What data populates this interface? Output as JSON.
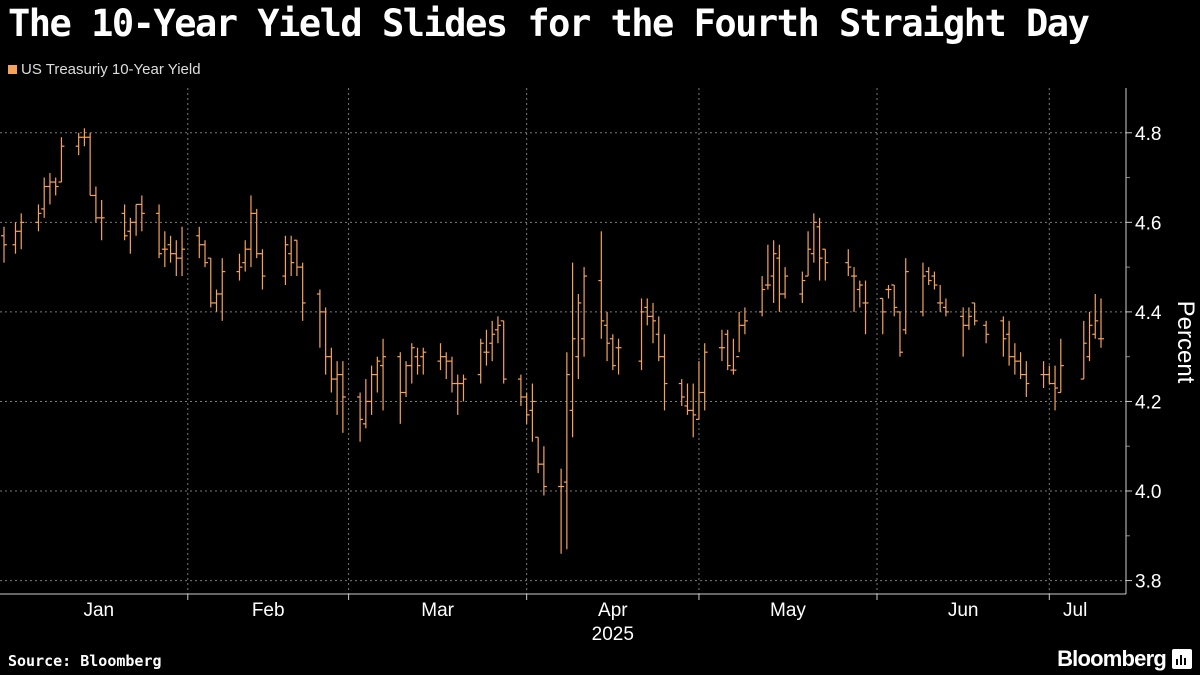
{
  "title": "The 10-Year Yield Slides for the Fourth Straight Day",
  "source": "Source: Bloomberg",
  "brand": "Bloomberg",
  "colors": {
    "background": "#000000",
    "series": "#f5a35a",
    "grid": "#7a7a7a",
    "text": "#ffffff"
  },
  "chart_data": {
    "type": "ohlc",
    "series_name": "US Treasuriy 10-Year Yield",
    "ylabel": "Percent",
    "xlabel": "2025",
    "ylim": [
      3.77,
      4.9
    ],
    "yticks": [
      3.8,
      4.0,
      4.2,
      4.4,
      4.6,
      4.8
    ],
    "x_start": "2024-12-31",
    "x_end": "2025-07-10",
    "grid": true,
    "legend_position": "top-left",
    "month_ticks": [
      "Jan",
      "Feb",
      "Mar",
      "Apr",
      "May",
      "Jun",
      "Jul"
    ],
    "month_ticks_dates": [
      "2025-01-01",
      "2025-02-01",
      "2025-03-01",
      "2025-04-01",
      "2025-05-01",
      "2025-06-01",
      "2025-07-01"
    ],
    "dates": [
      "2024-12-31",
      "2025-01-02",
      "2025-01-03",
      "2025-01-06",
      "2025-01-07",
      "2025-01-08",
      "2025-01-09",
      "2025-01-10",
      "2025-01-13",
      "2025-01-14",
      "2025-01-15",
      "2025-01-16",
      "2025-01-17",
      "2025-01-21",
      "2025-01-22",
      "2025-01-23",
      "2025-01-24",
      "2025-01-27",
      "2025-01-28",
      "2025-01-29",
      "2025-01-30",
      "2025-01-31",
      "2025-02-03",
      "2025-02-04",
      "2025-02-05",
      "2025-02-06",
      "2025-02-07",
      "2025-02-10",
      "2025-02-11",
      "2025-02-12",
      "2025-02-13",
      "2025-02-14",
      "2025-02-18",
      "2025-02-19",
      "2025-02-20",
      "2025-02-21",
      "2025-02-24",
      "2025-02-25",
      "2025-02-26",
      "2025-02-27",
      "2025-02-28",
      "2025-03-03",
      "2025-03-04",
      "2025-03-05",
      "2025-03-06",
      "2025-03-07",
      "2025-03-10",
      "2025-03-11",
      "2025-03-12",
      "2025-03-13",
      "2025-03-14",
      "2025-03-17",
      "2025-03-18",
      "2025-03-19",
      "2025-03-20",
      "2025-03-21",
      "2025-03-24",
      "2025-03-25",
      "2025-03-26",
      "2025-03-27",
      "2025-03-28",
      "2025-03-31",
      "2025-04-01",
      "2025-04-02",
      "2025-04-03",
      "2025-04-04",
      "2025-04-07",
      "2025-04-08",
      "2025-04-09",
      "2025-04-10",
      "2025-04-11",
      "2025-04-14",
      "2025-04-15",
      "2025-04-16",
      "2025-04-17",
      "2025-04-21",
      "2025-04-22",
      "2025-04-23",
      "2025-04-24",
      "2025-04-25",
      "2025-04-28",
      "2025-04-29",
      "2025-04-30",
      "2025-05-01",
      "2025-05-02",
      "2025-05-05",
      "2025-05-06",
      "2025-05-07",
      "2025-05-08",
      "2025-05-09",
      "2025-05-12",
      "2025-05-13",
      "2025-05-14",
      "2025-05-15",
      "2025-05-16",
      "2025-05-19",
      "2025-05-20",
      "2025-05-21",
      "2025-05-22",
      "2025-05-23",
      "2025-05-27",
      "2025-05-28",
      "2025-05-29",
      "2025-05-30",
      "2025-06-02",
      "2025-06-03",
      "2025-06-04",
      "2025-06-05",
      "2025-06-06",
      "2025-06-09",
      "2025-06-10",
      "2025-06-11",
      "2025-06-12",
      "2025-06-13",
      "2025-06-16",
      "2025-06-17",
      "2025-06-18",
      "2025-06-20",
      "2025-06-23",
      "2025-06-24",
      "2025-06-25",
      "2025-06-26",
      "2025-06-27",
      "2025-06-30",
      "2025-07-01",
      "2025-07-02",
      "2025-07-03",
      "2025-07-07",
      "2025-07-08",
      "2025-07-09",
      "2025-07-10"
    ],
    "open": [
      4.57,
      4.55,
      4.58,
      4.6,
      4.63,
      4.68,
      4.69,
      4.69,
      4.77,
      4.79,
      4.79,
      4.66,
      4.61,
      4.62,
      4.58,
      4.6,
      4.64,
      4.62,
      4.54,
      4.55,
      4.53,
      4.52,
      4.57,
      4.55,
      4.52,
      4.42,
      4.44,
      4.49,
      4.51,
      4.54,
      4.62,
      4.53,
      4.48,
      4.53,
      4.56,
      4.5,
      4.44,
      4.4,
      4.3,
      4.25,
      4.26,
      4.21,
      4.15,
      4.2,
      4.26,
      4.28,
      4.3,
      4.22,
      4.28,
      4.3,
      4.3,
      4.29,
      4.3,
      4.29,
      4.24,
      4.24,
      4.26,
      4.31,
      4.33,
      4.36,
      4.38,
      4.25,
      4.21,
      4.18,
      4.12,
      4.06,
      4.01,
      4.02,
      4.18,
      4.3,
      4.34,
      4.47,
      4.37,
      4.34,
      4.32,
      4.29,
      4.41,
      4.39,
      4.35,
      4.3,
      4.24,
      4.19,
      4.18,
      4.16,
      4.22,
      4.32,
      4.35,
      4.27,
      4.3,
      4.37,
      4.4,
      4.46,
      4.48,
      4.52,
      4.44,
      4.44,
      4.48,
      4.53,
      4.59,
      4.54,
      4.51,
      4.48,
      4.45,
      4.42,
      4.43,
      4.45,
      4.46,
      4.4,
      4.36,
      4.4,
      4.49,
      4.48,
      4.42,
      4.41,
      4.39,
      4.37,
      4.42,
      4.37,
      4.38,
      4.35,
      4.3,
      4.29,
      4.26,
      4.26,
      4.26,
      4.24,
      4.22,
      4.25,
      4.3,
      4.35,
      4.34
    ],
    "high": [
      4.59,
      4.6,
      4.62,
      4.64,
      4.7,
      4.71,
      4.7,
      4.79,
      4.8,
      4.81,
      4.8,
      4.68,
      4.65,
      4.64,
      4.61,
      4.64,
      4.66,
      4.64,
      4.58,
      4.57,
      4.56,
      4.59,
      4.59,
      4.56,
      4.52,
      4.45,
      4.52,
      4.53,
      4.56,
      4.66,
      4.63,
      4.54,
      4.57,
      4.57,
      4.56,
      4.51,
      4.45,
      4.41,
      4.32,
      4.29,
      4.29,
      4.22,
      4.25,
      4.28,
      4.3,
      4.34,
      4.31,
      4.29,
      4.33,
      4.32,
      4.32,
      4.33,
      4.31,
      4.3,
      4.26,
      4.26,
      4.34,
      4.36,
      4.38,
      4.39,
      4.38,
      4.26,
      4.22,
      4.24,
      4.12,
      4.1,
      4.05,
      4.31,
      4.51,
      4.44,
      4.5,
      4.58,
      4.4,
      4.35,
      4.34,
      4.43,
      4.43,
      4.42,
      4.39,
      4.35,
      4.25,
      4.24,
      4.24,
      4.29,
      4.33,
      4.36,
      4.36,
      4.34,
      4.4,
      4.41,
      4.48,
      4.55,
      4.56,
      4.55,
      4.5,
      4.49,
      4.58,
      4.62,
      4.61,
      4.54,
      4.54,
      4.5,
      4.47,
      4.47,
      4.43,
      4.46,
      4.46,
      4.4,
      4.52,
      4.51,
      4.5,
      4.49,
      4.46,
      4.43,
      4.41,
      4.41,
      4.42,
      4.38,
      4.39,
      4.38,
      4.33,
      4.31,
      4.29,
      4.29,
      4.28,
      4.28,
      4.34,
      4.38,
      4.4,
      4.44,
      4.43
    ],
    "low": [
      4.51,
      4.53,
      4.54,
      4.58,
      4.61,
      4.64,
      4.66,
      4.69,
      4.75,
      4.77,
      4.66,
      4.6,
      4.56,
      4.56,
      4.53,
      4.57,
      4.58,
      4.52,
      4.5,
      4.51,
      4.48,
      4.48,
      4.52,
      4.5,
      4.41,
      4.4,
      4.38,
      4.47,
      4.49,
      4.5,
      4.52,
      4.45,
      4.46,
      4.48,
      4.48,
      4.38,
      4.32,
      4.26,
      4.22,
      4.17,
      4.13,
      4.11,
      4.14,
      4.17,
      4.22,
      4.18,
      4.15,
      4.21,
      4.24,
      4.26,
      4.26,
      4.27,
      4.25,
      4.22,
      4.17,
      4.2,
      4.24,
      4.28,
      4.29,
      4.33,
      4.24,
      4.19,
      4.15,
      4.11,
      4.04,
      3.99,
      3.86,
      3.87,
      4.12,
      4.25,
      4.3,
      4.34,
      4.29,
      4.27,
      4.26,
      4.27,
      4.37,
      4.33,
      4.29,
      4.18,
      4.19,
      4.17,
      4.12,
      4.16,
      4.18,
      4.29,
      4.27,
      4.26,
      4.31,
      4.35,
      4.39,
      4.45,
      4.42,
      4.4,
      4.43,
      4.42,
      4.48,
      4.51,
      4.47,
      4.47,
      4.48,
      4.4,
      4.41,
      4.35,
      4.35,
      4.43,
      4.39,
      4.3,
      4.35,
      4.39,
      4.46,
      4.45,
      4.4,
      4.39,
      4.3,
      4.36,
      4.37,
      4.33,
      4.3,
      4.28,
      4.26,
      4.25,
      4.21,
      4.23,
      4.24,
      4.18,
      4.22,
      4.25,
      4.29,
      4.34,
      4.32
    ],
    "close": [
      4.55,
      4.58,
      4.6,
      4.62,
      4.68,
      4.69,
      4.68,
      4.77,
      4.79,
      4.79,
      4.66,
      4.61,
      4.61,
      4.57,
      4.6,
      4.64,
      4.62,
      4.53,
      4.54,
      4.53,
      4.52,
      4.54,
      4.55,
      4.51,
      4.42,
      4.44,
      4.49,
      4.5,
      4.54,
      4.62,
      4.53,
      4.48,
      4.55,
      4.51,
      4.5,
      4.42,
      4.4,
      4.3,
      4.25,
      4.26,
      4.21,
      4.16,
      4.2,
      4.26,
      4.29,
      4.3,
      4.22,
      4.28,
      4.32,
      4.28,
      4.31,
      4.3,
      4.29,
      4.24,
      4.24,
      4.25,
      4.33,
      4.31,
      4.35,
      4.37,
      4.25,
      4.21,
      4.17,
      4.2,
      4.06,
      4.01,
      4.01,
      4.26,
      4.34,
      4.42,
      4.48,
      4.38,
      4.33,
      4.28,
      4.32,
      4.4,
      4.39,
      4.38,
      4.3,
      4.24,
      4.21,
      4.18,
      4.17,
      4.22,
      4.31,
      4.32,
      4.28,
      4.27,
      4.37,
      4.38,
      4.45,
      4.46,
      4.53,
      4.44,
      4.48,
      4.47,
      4.54,
      4.6,
      4.52,
      4.51,
      4.5,
      4.48,
      4.46,
      4.42,
      4.4,
      4.45,
      4.41,
      4.31,
      4.49,
      4.48,
      4.47,
      4.46,
      4.42,
      4.4,
      4.37,
      4.39,
      4.38,
      4.35,
      4.34,
      4.3,
      4.29,
      4.26,
      4.24,
      4.26,
      4.24,
      4.23,
      4.28,
      4.33,
      4.37,
      4.38,
      4.34
    ]
  }
}
